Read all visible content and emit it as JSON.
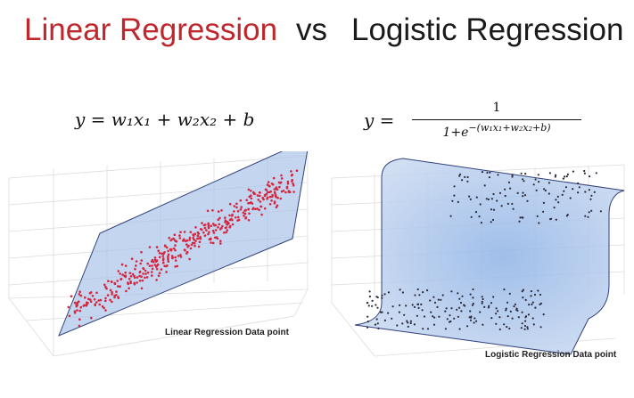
{
  "header": {
    "left_title": "Linear Regression",
    "vs": "vs",
    "right_title": "Logistic Regression"
  },
  "equations": {
    "linear": "y = w₁x₁ + w₂x₂ + b",
    "logistic_lhs": "y =",
    "logistic_numerator": "1",
    "logistic_den_base": "1+e",
    "logistic_den_exp": "−(w₁x₁+w₂x₂+b)"
  },
  "colors": {
    "linear_title": "#c0272d",
    "plane_fill": "#a9c3e8",
    "plane_edge": "#30407a",
    "linear_points": "#d6263f",
    "logistic_points": "#2b2b3a"
  },
  "chart_data": [
    {
      "type": "scatter",
      "subtype": "3d-scatter-with-plane",
      "title": "",
      "xlabel": "Linear Regression Data point",
      "ylabel": "",
      "surface": "plane",
      "grid": true,
      "series": [
        {
          "name": "",
          "values": []
        }
      ]
    },
    {
      "type": "scatter",
      "subtype": "3d-scatter-with-sigmoid-surface",
      "title": "",
      "xlabel": "Logistic Regression Data point",
      "ylabel": "",
      "surface": "sigmoid",
      "grid": true,
      "series": [
        {
          "name": "",
          "values": []
        }
      ]
    }
  ]
}
